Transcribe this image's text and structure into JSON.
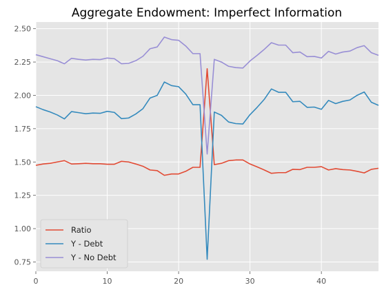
{
  "chart_data": {
    "type": "line",
    "title": "Aggregate Endowment: Imperfect Information",
    "xlabel": "",
    "ylabel": "",
    "xlim": [
      0,
      48
    ],
    "ylim": [
      0.68,
      2.55
    ],
    "xticks": [
      0,
      10,
      20,
      30,
      40
    ],
    "yticks": [
      0.75,
      1.0,
      1.25,
      1.5,
      1.75,
      2.0,
      2.25,
      2.5
    ],
    "ytick_labels": [
      "0.75",
      "1.00",
      "1.25",
      "1.50",
      "1.75",
      "2.00",
      "2.25",
      "2.50"
    ],
    "grid": true,
    "legend_position": "lower-left",
    "x": [
      0,
      1,
      2,
      3,
      4,
      5,
      6,
      7,
      8,
      9,
      10,
      11,
      12,
      13,
      14,
      15,
      16,
      17,
      18,
      19,
      20,
      21,
      22,
      23,
      24,
      25,
      26,
      27,
      28,
      29,
      30,
      31,
      32,
      33,
      34,
      35,
      36,
      37,
      38,
      39,
      40,
      41,
      42,
      43,
      44,
      45,
      46,
      47,
      48
    ],
    "series": [
      {
        "name": "Ratio",
        "color": "#E24A33",
        "values": [
          1.475,
          1.485,
          1.49,
          1.5,
          1.51,
          1.485,
          1.487,
          1.49,
          1.487,
          1.487,
          1.483,
          1.483,
          1.505,
          1.5,
          1.485,
          1.468,
          1.44,
          1.435,
          1.4,
          1.41,
          1.41,
          1.43,
          1.46,
          1.46,
          2.2,
          1.48,
          1.49,
          1.51,
          1.515,
          1.515,
          1.485,
          1.463,
          1.44,
          1.415,
          1.42,
          1.42,
          1.445,
          1.443,
          1.46,
          1.46,
          1.465,
          1.44,
          1.45,
          1.443,
          1.44,
          1.43,
          1.418,
          1.445,
          1.453
        ]
      },
      {
        "name": "Y - Debt",
        "color": "#348ABD",
        "values": [
          1.915,
          1.893,
          1.875,
          1.853,
          1.823,
          1.878,
          1.87,
          1.862,
          1.867,
          1.865,
          1.88,
          1.872,
          1.825,
          1.83,
          1.86,
          1.9,
          1.98,
          2.0,
          2.1,
          2.073,
          2.065,
          2.01,
          1.93,
          1.93,
          0.77,
          1.875,
          1.85,
          1.8,
          1.788,
          1.785,
          1.855,
          1.91,
          1.97,
          2.048,
          2.023,
          2.023,
          1.952,
          1.955,
          1.91,
          1.912,
          1.895,
          1.962,
          1.938,
          1.955,
          1.965,
          2.0,
          2.025,
          1.948,
          1.925
        ]
      },
      {
        "name": "Y - No Debt",
        "color": "#988ED5",
        "values": [
          2.305,
          2.29,
          2.275,
          2.26,
          2.237,
          2.278,
          2.27,
          2.265,
          2.27,
          2.268,
          2.28,
          2.275,
          2.237,
          2.24,
          2.26,
          2.293,
          2.35,
          2.363,
          2.437,
          2.418,
          2.413,
          2.37,
          2.313,
          2.313,
          1.56,
          2.27,
          2.25,
          2.218,
          2.208,
          2.205,
          2.258,
          2.3,
          2.345,
          2.395,
          2.377,
          2.377,
          2.32,
          2.325,
          2.29,
          2.292,
          2.28,
          2.33,
          2.31,
          2.325,
          2.332,
          2.358,
          2.373,
          2.32,
          2.3
        ]
      }
    ]
  }
}
